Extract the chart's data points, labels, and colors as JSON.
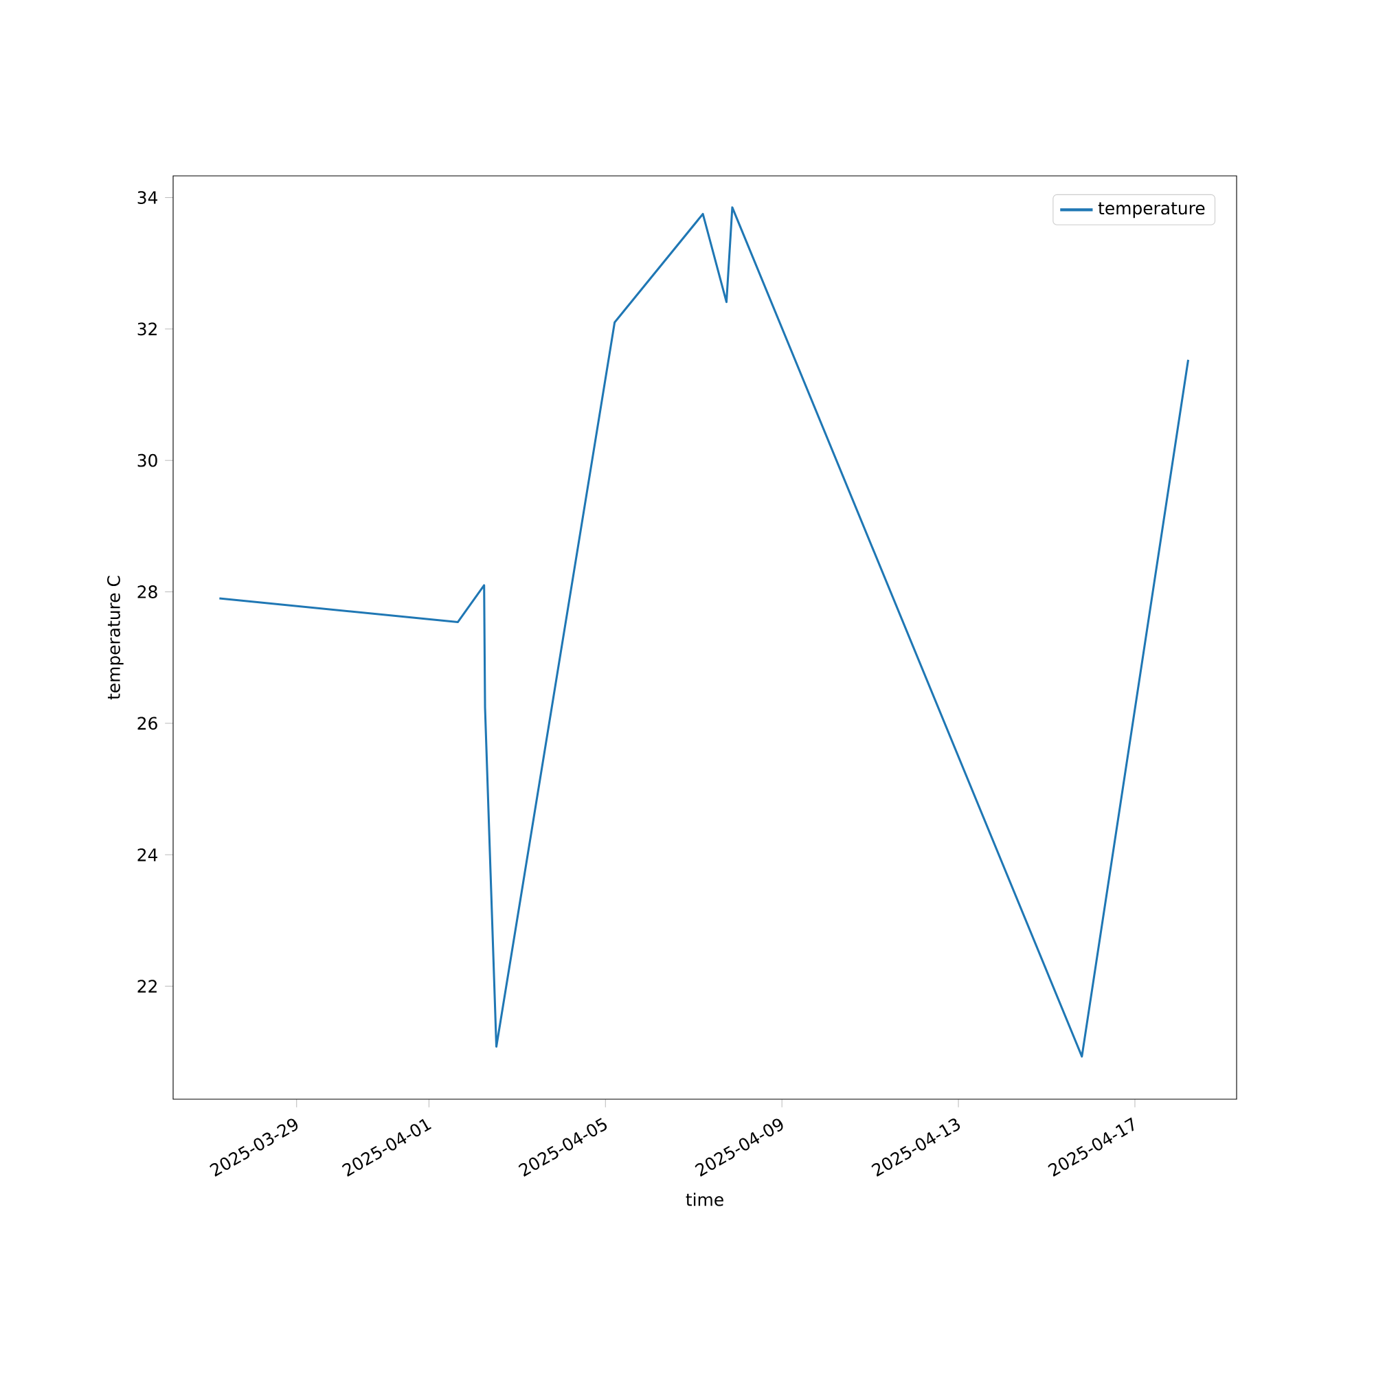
{
  "chart_data": {
    "type": "line",
    "xlabel": "time",
    "ylabel": "temperature C",
    "x": [
      "2025-03-27T06:00",
      "2025-04-01T15:40",
      "2025-04-02T06:00",
      "2025-04-02T06:30",
      "2025-04-02T12:40",
      "2025-04-05T05:00",
      "2025-04-07T05:00",
      "2025-04-07T17:50",
      "2025-04-07T21:00",
      "2025-04-15T19:10",
      "2025-04-18T05:00"
    ],
    "series": [
      {
        "name": "temperature",
        "color": "#1f77b4",
        "values": [
          27.9,
          27.54,
          28.1,
          26.24,
          21.08,
          32.1,
          33.75,
          32.41,
          33.85,
          20.93,
          31.53
        ]
      }
    ],
    "xlim": [
      "2025-03-26T04:50",
      "2025-04-19T07:20"
    ],
    "ylim": [
      20.28,
      34.33
    ],
    "xticks": [
      "2025-03-29",
      "2025-04-01",
      "2025-04-05",
      "2025-04-09",
      "2025-04-13",
      "2025-04-17"
    ],
    "yticks": [
      22,
      24,
      26,
      28,
      30,
      32,
      34
    ],
    "legend": "top right",
    "marker": "none",
    "line_style": "solid",
    "grid": false
  }
}
